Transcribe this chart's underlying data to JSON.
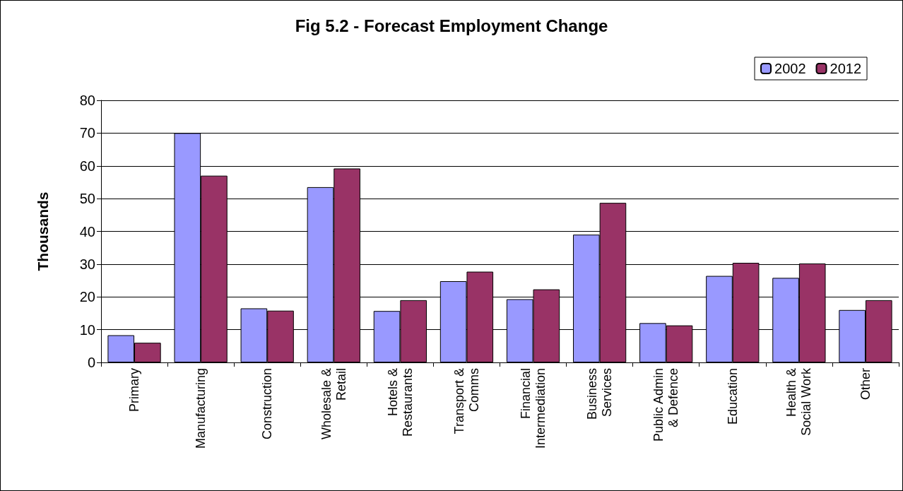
{
  "chart_data": {
    "type": "bar",
    "title": "Fig 5.2 - Forecast Employment Change",
    "ylabel": "Thousands",
    "categories": [
      "Primary",
      "Manufacturing",
      "Construction",
      "Wholesale & Retail",
      "Hotels & Restaurants",
      "Transport & Comms",
      "Financial Intermediation",
      "Business Services",
      "Public Admin & Defence",
      "Education",
      "Health & Social Work",
      "Other"
    ],
    "series": [
      {
        "name": "2002",
        "color": "#9999ff",
        "values": [
          8.3,
          70,
          16.5,
          53.5,
          15.7,
          24.8,
          19.3,
          39,
          12,
          26.4,
          25.8,
          16
        ]
      },
      {
        "name": "2012",
        "color": "#993366",
        "values": [
          6,
          57,
          15.8,
          59.2,
          19,
          27.7,
          22.3,
          48.7,
          11.3,
          30.4,
          30.2,
          19
        ]
      }
    ],
    "ylim": [
      0,
      80
    ],
    "yticks": [
      0,
      10,
      20,
      30,
      40,
      50,
      60,
      70,
      80
    ],
    "grid": "y",
    "legend": "top right"
  }
}
